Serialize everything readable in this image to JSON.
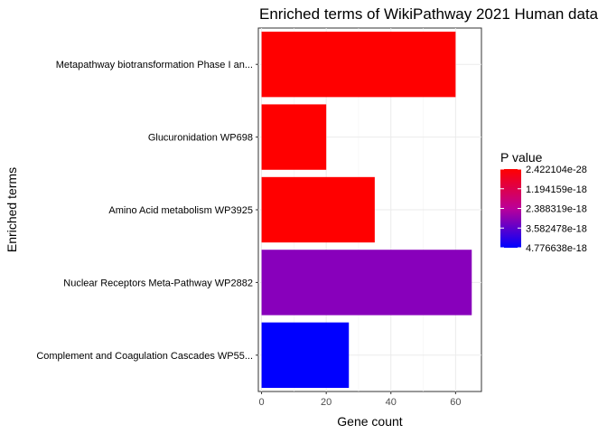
{
  "chart_data": {
    "type": "bar",
    "orientation": "horizontal",
    "title": "Enriched terms of WikiPathway 2021 Human data",
    "xlabel": "Gene count",
    "ylabel": "Enriched terms",
    "xlim": [
      -1,
      68
    ],
    "x_ticks": [
      0,
      20,
      40,
      60
    ],
    "grid": true,
    "legend_position": "right",
    "categories": [
      "Metapathway biotransformation Phase I an...",
      "Glucuronidation WP698",
      "Amino Acid metabolism WP3925",
      "Nuclear Receptors Meta-Pathway WP2882",
      "Complement and Coagulation Cascades WP55..."
    ],
    "values": [
      60,
      20,
      35,
      65,
      27
    ],
    "p_values": [
      2.422104e-28,
      2.422104e-28,
      2.422104e-28,
      3.7e-18,
      4.776638e-18
    ],
    "colors": [
      "#FF0000",
      "#FF0000",
      "#FF0000",
      "#8800BB",
      "#0000FF"
    ],
    "legend": {
      "title": "P value",
      "ticks": [
        "2.422104e-28",
        "1.194159e-18",
        "2.388319e-18",
        "3.582478e-18",
        "4.776638e-18"
      ],
      "color_low": "#FF0000",
      "color_high": "#0000FF"
    }
  }
}
